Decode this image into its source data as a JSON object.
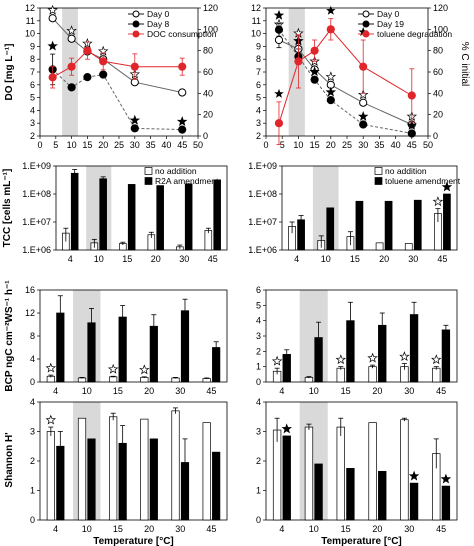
{
  "chart_data": [
    {
      "type": "line",
      "ylabel": "DO [mg L⁻¹]",
      "ylim": [
        2,
        12
      ],
      "yticks": [
        2,
        3,
        4,
        5,
        6,
        7,
        8,
        9,
        10,
        11,
        12
      ],
      "ylim2": [
        0,
        120
      ],
      "y2ticks": [
        0,
        20,
        40,
        60,
        80,
        100,
        120
      ],
      "xlim": [
        0,
        50
      ],
      "xticks": [
        0,
        5,
        10,
        15,
        20,
        25,
        30,
        35,
        40,
        45,
        50
      ],
      "shade": [
        7,
        12
      ],
      "legend": "top-right",
      "series": [
        {
          "name": "Day 0",
          "marker": "open",
          "x": [
            4,
            10,
            15,
            20,
            30,
            45
          ],
          "y": [
            11.2,
            9.6,
            8.6,
            8.0,
            6.2,
            5.4
          ],
          "star": [
            1,
            1,
            1,
            1,
            1,
            0
          ]
        },
        {
          "name": "Day 8",
          "marker": "filled",
          "x": [
            4,
            10,
            15,
            20,
            30,
            45
          ],
          "y": [
            7.2,
            5.8,
            6.6,
            6.8,
            2.6,
            2.5
          ],
          "err": [
            1.2,
            0,
            0,
            0,
            0,
            0
          ],
          "star": [
            1,
            0,
            0,
            0,
            1,
            1
          ]
        },
        {
          "name": "DOC consumption",
          "marker": "red",
          "axis": "right",
          "x": [
            4,
            10,
            15,
            20,
            30,
            45
          ],
          "y": [
            55,
            65,
            80,
            70,
            65,
            65
          ],
          "err": [
            10,
            8,
            8,
            8,
            12,
            8
          ]
        }
      ]
    },
    {
      "type": "line",
      "ylim": [
        2,
        12
      ],
      "yticks": [
        2,
        3,
        4,
        5,
        6,
        7,
        8,
        9,
        10,
        11,
        12
      ],
      "y2label": "% C initial",
      "ylim2": [
        0,
        120
      ],
      "y2ticks": [
        0,
        20,
        40,
        60,
        80,
        100,
        120
      ],
      "xlim": [
        0,
        50
      ],
      "xticks": [
        0,
        5,
        10,
        15,
        20,
        25,
        30,
        35,
        40,
        45,
        50
      ],
      "shade": [
        7,
        12
      ],
      "legend": "top-right",
      "series": [
        {
          "name": "Day 0",
          "marker": "open",
          "x": [
            4,
            10,
            15,
            20,
            30,
            45
          ],
          "y": [
            9.5,
            8.8,
            7.2,
            6.0,
            4.6,
            2.9
          ],
          "err": [
            0.6,
            0.6,
            0,
            0,
            0,
            0
          ],
          "star": [
            1,
            1,
            1,
            1,
            1,
            1
          ]
        },
        {
          "name": "Day 19",
          "marker": "filled",
          "x": [
            4,
            10,
            15,
            20,
            30,
            45
          ],
          "y": [
            10.3,
            8.2,
            6.4,
            4.8,
            2.9,
            2.2
          ],
          "err": [
            0.5,
            0.6,
            0,
            0,
            0,
            0
          ],
          "star": [
            1,
            1,
            1,
            1,
            1,
            1
          ]
        },
        {
          "name": "toluene degradation",
          "marker": "red",
          "axis": "right",
          "x": [
            4,
            10,
            15,
            20,
            30,
            45
          ],
          "y": [
            12,
            70,
            80,
            100,
            65,
            38
          ],
          "err": [
            20,
            25,
            10,
            10,
            25,
            25
          ],
          "star": [
            1,
            0,
            0,
            1,
            1,
            0
          ]
        }
      ]
    },
    {
      "type": "bar",
      "ylabel": "TCC [cells mL⁻¹]",
      "yscale": "log",
      "ylim": [
        1000000,
        1000000000
      ],
      "yticks": [
        1000000,
        10000000,
        100000000,
        1000000000
      ],
      "yticklabels": [
        "1.E+06",
        "1.E+07",
        "1.E+08",
        "1.E+09"
      ],
      "categories": [
        "4",
        "10",
        "15",
        "20",
        "30",
        "45"
      ],
      "shade_category": "10",
      "legend": "top-right",
      "series": [
        {
          "name": "no addition",
          "fill": "open",
          "values": [
            4000000,
            1800000,
            1700000,
            3500000,
            1300000,
            5000000
          ],
          "err": [
            2000000,
            600000,
            200000,
            800000,
            200000,
            1000000
          ]
        },
        {
          "name": "R2A amendment",
          "fill": "filled",
          "values": [
            550000000,
            350000000,
            220000000,
            200000000,
            230000000,
            320000000
          ],
          "err": [
            200000000,
            60000000,
            0,
            0,
            0,
            0
          ]
        }
      ]
    },
    {
      "type": "bar",
      "yscale": "log",
      "ylim": [
        1000000,
        1000000000
      ],
      "yticks": [
        1000000,
        10000000,
        100000000,
        1000000000
      ],
      "yticklabels": [
        "1.E+06",
        "1.E+07",
        "1.E+08",
        "1.E+09"
      ],
      "categories": [
        "4",
        "10",
        "15",
        "20",
        "30",
        "45"
      ],
      "shade_category": "10",
      "legend": "top-right",
      "series": [
        {
          "name": "no addition",
          "fill": "open",
          "values": [
            7000000,
            2200000,
            3000000,
            1800000,
            1700000,
            20000000
          ],
          "err": [
            3000000,
            1000000,
            1500000,
            0,
            0,
            10000000
          ],
          "star": [
            0,
            0,
            0,
            0,
            0,
            1
          ]
        },
        {
          "name": "toluene amendment",
          "fill": "filled",
          "values": [
            12000000,
            32000000,
            55000000,
            55000000,
            60000000,
            100000000
          ],
          "err": [
            5000000,
            0,
            0,
            0,
            0,
            0
          ],
          "star": [
            0,
            0,
            0,
            0,
            0,
            1
          ]
        }
      ]
    },
    {
      "type": "bar",
      "ylabel": "BCP ngC cm⁻²WS⁻¹ h⁻¹",
      "ylim": [
        0,
        16
      ],
      "yticks": [
        0,
        4,
        8,
        12,
        16
      ],
      "categories": [
        "4",
        "10",
        "15",
        "20",
        "30",
        "45"
      ],
      "shade_category": "10",
      "series": [
        {
          "name": "no addition",
          "fill": "open",
          "values": [
            1.0,
            0.7,
            0.9,
            0.8,
            0.7,
            0.6
          ],
          "err": [
            0.2,
            0.1,
            0.1,
            0.1,
            0.1,
            0.1
          ],
          "star": [
            1,
            0,
            1,
            1,
            0,
            0
          ]
        },
        {
          "name": "R2A amendment",
          "fill": "filled",
          "values": [
            12.0,
            10.3,
            11.3,
            9.7,
            12.4,
            6.0
          ],
          "err": [
            3.0,
            2.5,
            2.0,
            2.0,
            2.0,
            1.0
          ]
        }
      ]
    },
    {
      "type": "bar",
      "ylim": [
        0,
        6
      ],
      "yticks": [
        0,
        1,
        2,
        3,
        4,
        5,
        6
      ],
      "categories": [
        "4",
        "10",
        "15",
        "20",
        "30",
        "45"
      ],
      "shade_category": "10",
      "series": [
        {
          "name": "no addition",
          "fill": "open",
          "values": [
            0.7,
            0.3,
            0.9,
            1.0,
            1.0,
            0.9
          ],
          "err": [
            0.2,
            0.05,
            0.1,
            0.1,
            0.2,
            0.1
          ],
          "star": [
            1,
            0,
            1,
            1,
            1,
            1
          ]
        },
        {
          "name": "toluene amendment",
          "fill": "filled",
          "values": [
            1.8,
            2.9,
            4.0,
            3.7,
            4.4,
            3.4
          ],
          "err": [
            0.3,
            1.0,
            1.2,
            0.8,
            0.8,
            0.3
          ]
        }
      ]
    },
    {
      "type": "bar",
      "ylabel": "Shannon H'",
      "ylim": [
        0,
        4
      ],
      "yticks": [
        0,
        1,
        2,
        3,
        4
      ],
      "categories": [
        "4",
        "10",
        "15",
        "20",
        "30",
        "45"
      ],
      "xlabel": "Temperature [°C]",
      "shade_category": "10",
      "series": [
        {
          "name": "no addition",
          "fill": "open",
          "values": [
            3.0,
            3.45,
            3.5,
            3.42,
            3.7,
            3.3
          ],
          "err": [
            0.15,
            0,
            0.12,
            0,
            0.1,
            0
          ],
          "star": [
            1,
            0,
            0,
            0,
            0,
            0
          ]
        },
        {
          "name": "R2A amendment",
          "fill": "filled",
          "values": [
            2.5,
            2.75,
            2.6,
            2.75,
            1.95,
            2.3
          ],
          "err": [
            0.5,
            0,
            0.6,
            0,
            0.8,
            0
          ]
        }
      ]
    },
    {
      "type": "bar",
      "ylim": [
        0,
        4
      ],
      "yticks": [
        0,
        1,
        2,
        3,
        4
      ],
      "categories": [
        "4",
        "10",
        "15",
        "20",
        "30",
        "45"
      ],
      "xlabel": "Temperature [°C]",
      "shade_category": "10",
      "series": [
        {
          "name": "no addition",
          "fill": "open",
          "values": [
            3.05,
            3.15,
            3.15,
            3.3,
            3.4,
            2.25
          ],
          "err": [
            0.4,
            0.1,
            0.3,
            0,
            0.05,
            0.5
          ]
        },
        {
          "name": "toluene amendment",
          "fill": "filled",
          "values": [
            2.85,
            1.9,
            1.75,
            1.65,
            1.25,
            1.15
          ],
          "err": [
            0,
            0,
            0,
            0,
            0,
            0
          ],
          "star": [
            1,
            0,
            0,
            0,
            1,
            1
          ]
        }
      ]
    }
  ]
}
